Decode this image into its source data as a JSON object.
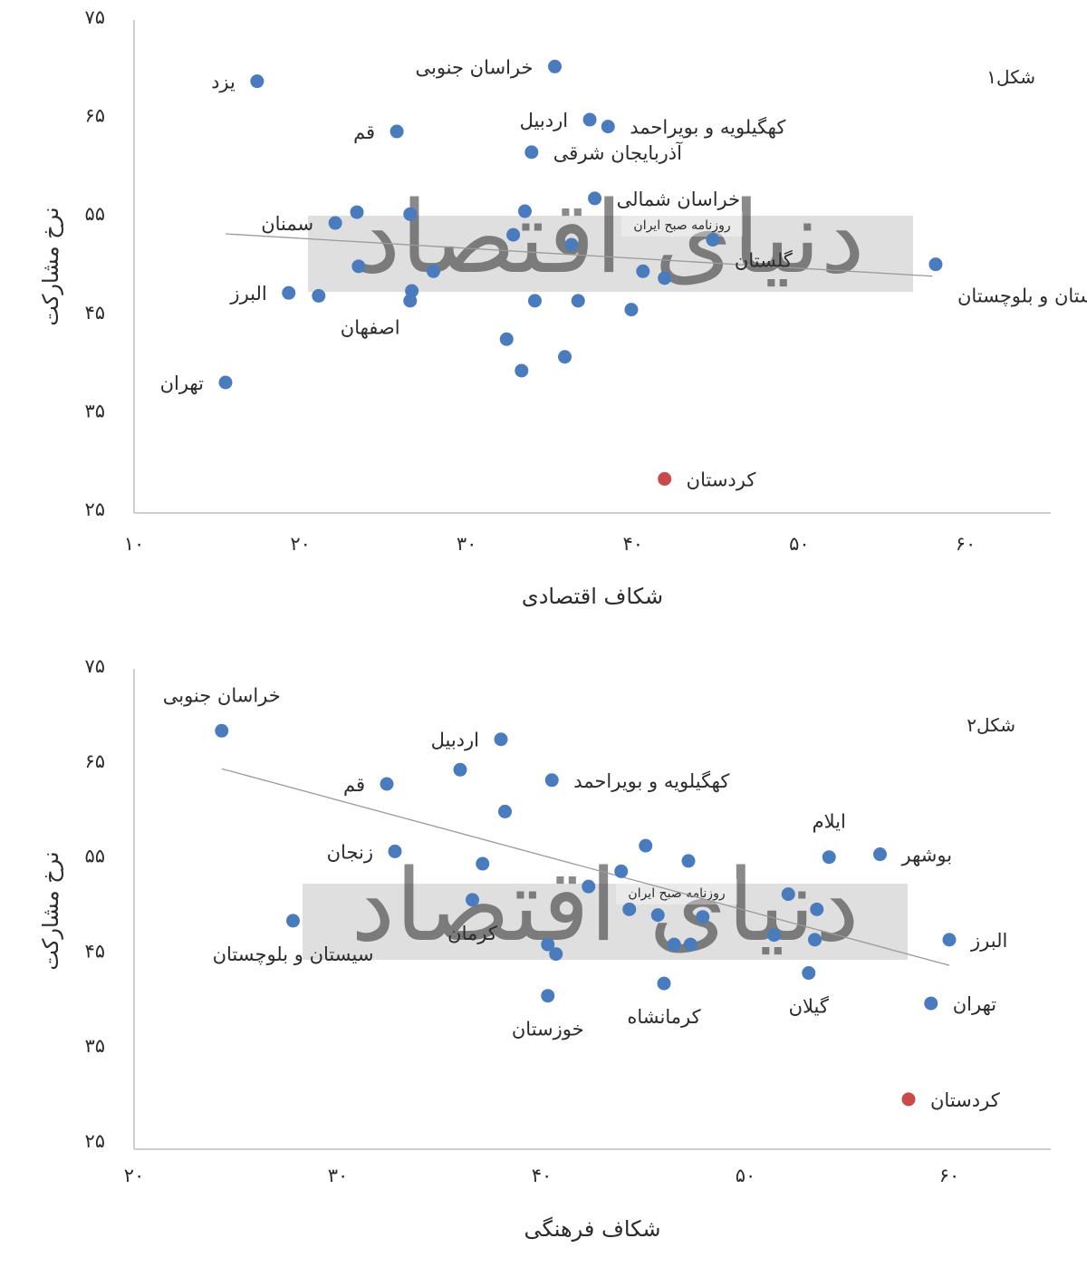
{
  "colors": {
    "point": "#4a7cbd",
    "highlight": "#c94a4a",
    "trend": "#9a9a9a",
    "axis": "#bfbfbf",
    "watermark_band": "#d9d9d9"
  },
  "watermark": {
    "big_text": "دنیای اقتصاد",
    "small_text": "روزنامه صبح ایران"
  },
  "chart_data": [
    {
      "type": "scatter",
      "figure_label": "شکل۱",
      "xlabel": "شکاف اقتصادی",
      "ylabel": "نرخ مشارکت",
      "xlim": [
        10,
        65
      ],
      "ylim": [
        25,
        75
      ],
      "x_ticks": [
        10,
        20,
        30,
        40,
        50,
        60
      ],
      "x_tick_labels": [
        "۱۰",
        "۲۰",
        "۳۰",
        "۴۰",
        "۵۰",
        "۶۰"
      ],
      "y_ticks": [
        25,
        35,
        45,
        55,
        65,
        75
      ],
      "y_tick_labels": [
        "۲۵",
        "۳۵",
        "۴۵",
        "۵۵",
        "۶۵",
        "۷۵"
      ],
      "trendline": {
        "x": [
          15.5,
          58
        ],
        "y": [
          52.9,
          48.6
        ]
      },
      "points": [
        {
          "x": 17.4,
          "y": 68.4,
          "label": "یزد",
          "label_side": "left"
        },
        {
          "x": 35.3,
          "y": 69.9,
          "label": "خراسان جنوبی",
          "label_side": "left"
        },
        {
          "x": 25.8,
          "y": 63.3,
          "label": "قم",
          "label_side": "left"
        },
        {
          "x": 37.4,
          "y": 64.5,
          "label": "اردبیل",
          "label_side": "left"
        },
        {
          "x": 38.5,
          "y": 63.8,
          "label": "کهگیلویه و بویراحمد",
          "label_side": "right"
        },
        {
          "x": 33.9,
          "y": 61.2,
          "label": "آذربایجان شرقی",
          "label_side": "right"
        },
        {
          "x": 37.7,
          "y": 56.5,
          "label": "خراسان شمالی",
          "label_side": "right"
        },
        {
          "x": 22.1,
          "y": 54.0,
          "label": "سمنان",
          "label_side": "left"
        },
        {
          "x": 44.8,
          "y": 52.3,
          "label": "گلستان",
          "label_side": "right",
          "label_dy": 30
        },
        {
          "x": 58.2,
          "y": 49.8,
          "label": "سیستان و بلوچستان",
          "label_side": "right",
          "label_dy": 42
        },
        {
          "x": 19.3,
          "y": 46.9,
          "label": "البرز",
          "label_side": "left"
        },
        {
          "x": 21.1,
          "y": 46.6,
          "label": "اصفهان",
          "label_side": "right",
          "label_dy": 42
        },
        {
          "x": 15.5,
          "y": 37.8,
          "label": "تهران",
          "label_side": "left"
        },
        {
          "x": 41.9,
          "y": 28.0,
          "label": "کردستان",
          "label_side": "right",
          "highlight": true
        },
        {
          "x": 23.4,
          "y": 55.1
        },
        {
          "x": 26.6,
          "y": 54.9
        },
        {
          "x": 33.5,
          "y": 55.2
        },
        {
          "x": 32.8,
          "y": 52.8
        },
        {
          "x": 36.3,
          "y": 51.8
        },
        {
          "x": 23.5,
          "y": 49.6
        },
        {
          "x": 28.0,
          "y": 49.1
        },
        {
          "x": 40.6,
          "y": 49.1
        },
        {
          "x": 41.9,
          "y": 48.4
        },
        {
          "x": 26.7,
          "y": 47.1
        },
        {
          "x": 26.6,
          "y": 46.1
        },
        {
          "x": 34.1,
          "y": 46.1
        },
        {
          "x": 36.7,
          "y": 46.1
        },
        {
          "x": 39.9,
          "y": 45.2
        },
        {
          "x": 32.4,
          "y": 42.2
        },
        {
          "x": 35.9,
          "y": 40.4
        },
        {
          "x": 33.3,
          "y": 39.0
        }
      ]
    },
    {
      "type": "scatter",
      "figure_label": "شکل۲",
      "xlabel": "شکاف فرهنگی",
      "ylabel": "نرخ مشارکت",
      "xlim": [
        20,
        65
      ],
      "ylim": [
        25,
        75
      ],
      "x_ticks": [
        20,
        30,
        40,
        50,
        60
      ],
      "x_tick_labels": [
        "۲۰",
        "۳۰",
        "۴۰",
        "۵۰",
        "۶۰"
      ],
      "y_ticks": [
        25,
        35,
        45,
        55,
        65,
        75
      ],
      "y_tick_labels": [
        "۲۵",
        "۳۵",
        "۴۵",
        "۵۵",
        "۶۵",
        "۷۵"
      ],
      "trendline": {
        "x": [
          24.3,
          60
        ],
        "y": [
          64.1,
          43.4
        ]
      },
      "points": [
        {
          "x": 24.3,
          "y": 68.1,
          "label": "خراسان جنوبی",
          "label_side": "above"
        },
        {
          "x": 38.0,
          "y": 67.2,
          "label": "اردبیل",
          "label_side": "left"
        },
        {
          "x": 32.4,
          "y": 62.5,
          "label": "قم",
          "label_side": "left"
        },
        {
          "x": 40.5,
          "y": 62.9,
          "label": "کهگیلویه و بویراحمد",
          "label_side": "right"
        },
        {
          "x": 32.8,
          "y": 55.4,
          "label": "زنجان",
          "label_side": "left"
        },
        {
          "x": 54.1,
          "y": 54.8,
          "label": "ایلام",
          "label_side": "above"
        },
        {
          "x": 56.6,
          "y": 55.1,
          "label": "بوشهر",
          "label_side": "right"
        },
        {
          "x": 36.6,
          "y": 50.3,
          "label": "کرمان",
          "label_side": "below"
        },
        {
          "x": 27.8,
          "y": 48.1,
          "label": "سیستان و بلوچستان",
          "label_side": "below"
        },
        {
          "x": 60.0,
          "y": 46.1,
          "label": "البرز",
          "label_side": "right"
        },
        {
          "x": 53.1,
          "y": 42.6,
          "label": "گیلان",
          "label_side": "below"
        },
        {
          "x": 59.1,
          "y": 39.4,
          "label": "تهران",
          "label_side": "right"
        },
        {
          "x": 40.3,
          "y": 40.2,
          "label": "خوزستان",
          "label_side": "below"
        },
        {
          "x": 46.0,
          "y": 41.5,
          "label": "کرمانشاه",
          "label_side": "below"
        },
        {
          "x": 58.0,
          "y": 29.3,
          "label": "کردستان",
          "label_side": "right",
          "highlight": true
        },
        {
          "x": 36.0,
          "y": 64.0
        },
        {
          "x": 38.2,
          "y": 59.6
        },
        {
          "x": 45.1,
          "y": 56.0
        },
        {
          "x": 47.2,
          "y": 54.4
        },
        {
          "x": 37.1,
          "y": 54.1
        },
        {
          "x": 43.9,
          "y": 53.3
        },
        {
          "x": 42.3,
          "y": 51.7
        },
        {
          "x": 52.1,
          "y": 50.9
        },
        {
          "x": 44.3,
          "y": 49.3
        },
        {
          "x": 53.5,
          "y": 49.3
        },
        {
          "x": 45.7,
          "y": 48.7
        },
        {
          "x": 47.9,
          "y": 48.5
        },
        {
          "x": 51.4,
          "y": 46.6
        },
        {
          "x": 53.4,
          "y": 46.1
        },
        {
          "x": 40.3,
          "y": 45.6
        },
        {
          "x": 46.5,
          "y": 45.6
        },
        {
          "x": 47.3,
          "y": 45.6
        },
        {
          "x": 40.7,
          "y": 44.6
        }
      ]
    }
  ]
}
